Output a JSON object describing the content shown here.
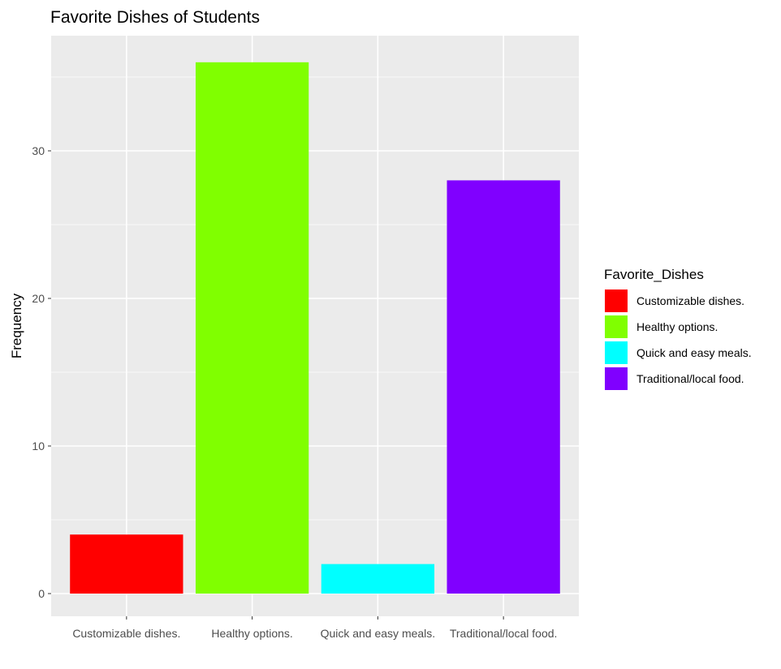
{
  "chart_data": {
    "type": "bar",
    "title": "Favorite Dishes of Students",
    "xlabel": "",
    "ylabel": "Frequency",
    "categories": [
      "Customizable dishes.",
      "Healthy options.",
      "Quick and easy meals.",
      "Traditional/local food."
    ],
    "values": [
      4,
      36,
      2,
      28
    ],
    "colors": [
      "#FF0000",
      "#80FF00",
      "#00FFFF",
      "#8000FF"
    ],
    "ylim": [
      0,
      37.8
    ],
    "yticks": [
      0,
      10,
      20,
      30
    ],
    "grid": true,
    "panel_background": "#EBEBEB",
    "legend": {
      "title": "Favorite_Dishes",
      "position": "right",
      "entries": [
        "Customizable dishes.",
        "Healthy options.",
        "Quick and easy meals.",
        "Traditional/local food."
      ]
    }
  }
}
